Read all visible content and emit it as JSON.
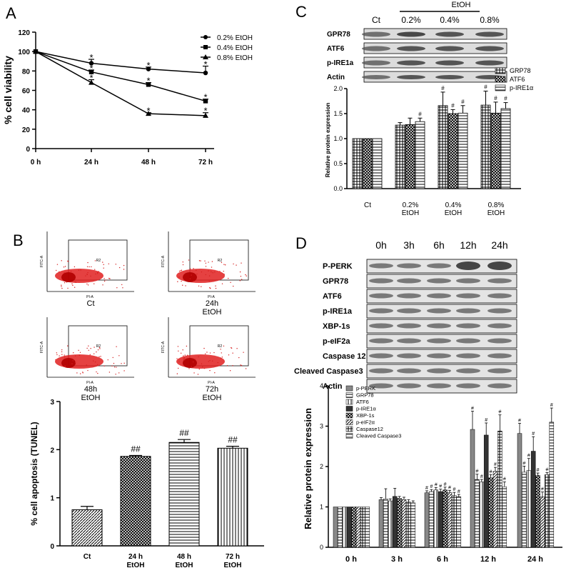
{
  "panel_a": {
    "letter": "A",
    "chart_data": {
      "type": "line",
      "x": [
        "0 h",
        "24 h",
        "48 h",
        "72 h"
      ],
      "series": [
        {
          "name": "0.2% EtOH",
          "marker": "circle",
          "values": [
            100,
            88,
            82,
            78
          ],
          "err": [
            0,
            4,
            2,
            7
          ]
        },
        {
          "name": "0.4% EtOH",
          "marker": "square",
          "values": [
            100,
            79,
            66,
            49
          ],
          "err": [
            0,
            2,
            2,
            2
          ]
        },
        {
          "name": "0.8% EtOH",
          "marker": "triangle",
          "values": [
            100,
            68,
            36,
            34
          ],
          "err": [
            0,
            3,
            1,
            3
          ]
        }
      ],
      "sig_label": "*",
      "ylabel": "% cell viability",
      "ylim": [
        0,
        120
      ],
      "yticks": [
        0,
        20,
        40,
        60,
        80,
        100,
        120
      ]
    }
  },
  "panel_b": {
    "letter": "B",
    "flow_plots": [
      {
        "caption": "Ct",
        "caption2": ""
      },
      {
        "caption": "24h",
        "caption2": "EtOH"
      },
      {
        "caption": "48h",
        "caption2": "EtOH"
      },
      {
        "caption": "72h",
        "caption2": "EtOH"
      }
    ],
    "flow_gate_label": "R2",
    "flow_xaxis": "PI-A",
    "flow_yaxis": "FITC-A",
    "chart_data": {
      "type": "bar",
      "categories": [
        [
          "Ct",
          ""
        ],
        [
          "24 h",
          "EtOH"
        ],
        [
          "48 h",
          "EtOH"
        ],
        [
          "72 h",
          "EtOH"
        ]
      ],
      "values": [
        0.75,
        1.86,
        2.15,
        2.03
      ],
      "err": [
        0.07,
        0.02,
        0.06,
        0.04
      ],
      "annotations": [
        "",
        "##",
        "##",
        "##"
      ],
      "ylabel": "% cell apoptosis (TUNEL)",
      "ylim": [
        0,
        3
      ],
      "yticks": [
        0,
        1,
        2,
        3
      ]
    }
  },
  "panel_c": {
    "letter": "C",
    "header_group": "EtOH",
    "lanes": [
      "Ct",
      "0.2%",
      "0.4%",
      "0.8%"
    ],
    "blots": [
      "GPR78",
      "ATF6",
      "p-IRE1a",
      "Actin"
    ],
    "chart_data": {
      "type": "bar",
      "categories": [
        [
          "Ct",
          ""
        ],
        [
          "0.2%",
          "EtOH"
        ],
        [
          "0.4%",
          "EtOH"
        ],
        [
          "0.8%",
          "EtOH"
        ]
      ],
      "series": [
        {
          "name": "GRP78",
          "values": [
            1.0,
            1.27,
            1.66,
            1.67
          ],
          "err": [
            0,
            0.05,
            0.27,
            0.28
          ]
        },
        {
          "name": "ATF6",
          "values": [
            1.0,
            1.28,
            1.5,
            1.51
          ],
          "err": [
            0,
            0.13,
            0.08,
            0.22
          ]
        },
        {
          "name": "p-IRE1α",
          "values": [
            1.0,
            1.34,
            1.51,
            1.6
          ],
          "err": [
            0,
            0.07,
            0.15,
            0.12
          ]
        }
      ],
      "annotations": [
        [
          "",
          "",
          ""
        ],
        [
          "",
          "",
          "#"
        ],
        [
          "#",
          "#",
          "#"
        ],
        [
          "#",
          "#",
          "#"
        ]
      ],
      "ylabel": "Relative protein expression",
      "ylim": [
        0,
        2.0
      ],
      "yticks": [
        "0.0",
        "0.5",
        "1.0",
        "1.5",
        "2.0"
      ]
    }
  },
  "panel_d": {
    "letter": "D",
    "lanes": [
      "0h",
      "3h",
      "6h",
      "12h",
      "24h"
    ],
    "blots": [
      "P-PERK",
      "GPR78",
      "ATF6",
      "p-IRE1a",
      "XBP-1s",
      "p-eIF2a",
      "Caspase 12",
      "Cleaved Caspase3",
      "Actin"
    ],
    "chart_data": {
      "type": "bar",
      "categories": [
        "0 h",
        "3 h",
        "6 h",
        "12 h",
        "24 h"
      ],
      "series": [
        {
          "name": "p-PERK",
          "values": [
            1.0,
            1.18,
            1.35,
            2.92,
            2.82
          ],
          "err": [
            0,
            0.05,
            0.05,
            0.45,
            0.25
          ]
        },
        {
          "name": "GRP78",
          "values": [
            1.0,
            1.2,
            1.38,
            1.68,
            1.86
          ],
          "err": [
            0,
            0.25,
            0.05,
            0.13,
            0.15
          ]
        },
        {
          "name": "ATF6",
          "values": [
            1.0,
            1.15,
            1.42,
            1.62,
            1.9
          ],
          "err": [
            0,
            0.05,
            0.06,
            0.06,
            0.3
          ]
        },
        {
          "name": "p-IRE1α",
          "values": [
            1.0,
            1.26,
            1.38,
            2.78,
            2.38
          ],
          "err": [
            0,
            0.2,
            0.06,
            0.3,
            0.36
          ]
        },
        {
          "name": "XBP-1s",
          "values": [
            1.0,
            1.21,
            1.42,
            1.72,
            1.78
          ],
          "err": [
            0,
            0.05,
            0.07,
            0.08,
            0.06
          ]
        },
        {
          "name": "p-eIF2α",
          "values": [
            1.0,
            1.18,
            1.36,
            1.88,
            1.25
          ],
          "err": [
            0,
            0.06,
            0.05,
            0.1,
            0.12
          ]
        },
        {
          "name": "Caspase12",
          "values": [
            1.0,
            1.12,
            1.28,
            2.88,
            1.8
          ],
          "err": [
            0,
            0.06,
            0.08,
            0.4,
            0.05
          ]
        },
        {
          "name": "Cleaved Caspase3",
          "values": [
            1.0,
            1.1,
            1.25,
            1.5,
            3.1
          ],
          "err": [
            0,
            0.05,
            0.06,
            0.12,
            0.35
          ]
        }
      ],
      "sig_label": "#",
      "ylabel": "Relative protein expression",
      "ylim": [
        0,
        4
      ],
      "yticks": [
        0,
        1,
        2,
        3,
        4
      ]
    }
  }
}
